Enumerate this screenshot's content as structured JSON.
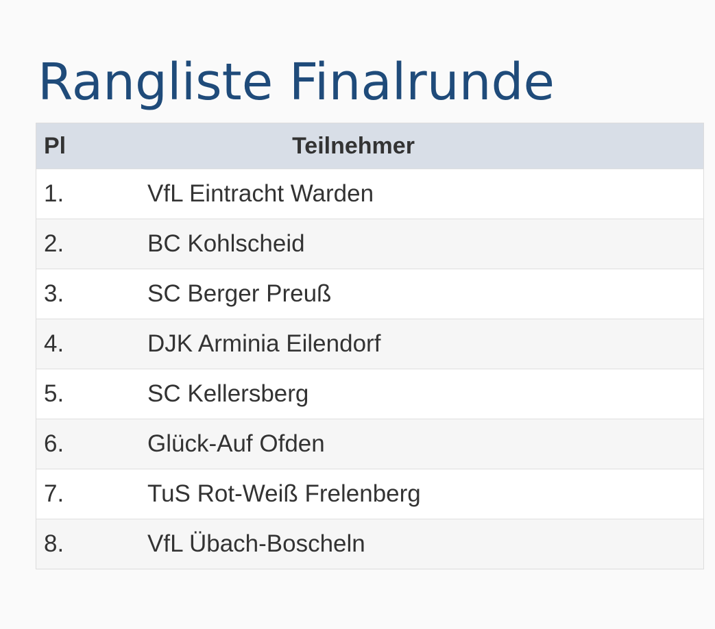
{
  "page": {
    "title": "Rangliste Finalrunde"
  },
  "table": {
    "headers": {
      "place": "Pl",
      "participant": "Teilnehmer"
    },
    "rows": [
      {
        "place": "1.",
        "name": "VfL Eintracht Warden"
      },
      {
        "place": "2.",
        "name": "BC Kohlscheid"
      },
      {
        "place": "3.",
        "name": "SC Berger Preuß"
      },
      {
        "place": "4.",
        "name": "DJK Arminia Eilendorf"
      },
      {
        "place": "5.",
        "name": "SC Kellersberg"
      },
      {
        "place": "6.",
        "name": "Glück-Auf Ofden"
      },
      {
        "place": "7.",
        "name": "TuS Rot-Weiß Frelenberg"
      },
      {
        "place": "8.",
        "name": "VfL Übach-Boscheln"
      }
    ]
  },
  "colors": {
    "title": "#1f4b7a",
    "header_bg": "#d8dee7",
    "text": "#333333",
    "row_alt_bg": "#f6f6f6"
  }
}
